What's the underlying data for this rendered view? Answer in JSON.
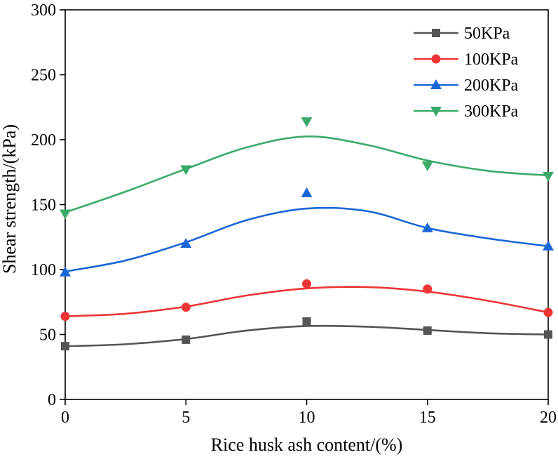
{
  "chart_data": {
    "type": "line",
    "title": "",
    "xlabel": "Rice husk ash content/(%)",
    "ylabel": "Shear strength/(kPa)",
    "xlim": [
      0,
      20
    ],
    "ylim": [
      0,
      300
    ],
    "xticks": [
      0,
      5,
      10,
      15,
      20
    ],
    "yticks": [
      0,
      50,
      100,
      150,
      200,
      250,
      300
    ],
    "x": [
      0,
      5,
      10,
      15,
      20
    ],
    "legend_position": "top-right",
    "grid": false,
    "series": [
      {
        "name": "50KPa",
        "color": "#555555",
        "marker": "square",
        "values": [
          41,
          46,
          60,
          53,
          50
        ],
        "fit": [
          [
            0,
            41
          ],
          [
            2.5,
            42.5
          ],
          [
            5,
            46.5
          ],
          [
            7.5,
            53
          ],
          [
            10,
            56.5
          ],
          [
            12.5,
            56
          ],
          [
            15,
            53.5
          ],
          [
            17.5,
            51
          ],
          [
            20,
            50
          ]
        ]
      },
      {
        "name": "100KPa",
        "color": "#ee3535",
        "marker": "circle",
        "values": [
          64,
          71,
          89,
          85,
          67
        ],
        "fit": [
          [
            0,
            64
          ],
          [
            2.5,
            66
          ],
          [
            5,
            71.5
          ],
          [
            7.5,
            80
          ],
          [
            10,
            85.5
          ],
          [
            12.5,
            86.5
          ],
          [
            15,
            83
          ],
          [
            17.5,
            76
          ],
          [
            20,
            67
          ]
        ]
      },
      {
        "name": "200KPa",
        "color": "#1a66d6",
        "marker": "triangle-up",
        "values": [
          98,
          120,
          159,
          132,
          118
        ],
        "fit": [
          [
            0,
            98.5
          ],
          [
            2.5,
            107
          ],
          [
            5,
            121
          ],
          [
            7.5,
            138
          ],
          [
            10,
            147
          ],
          [
            12.5,
            145
          ],
          [
            15,
            132
          ],
          [
            17.5,
            124
          ],
          [
            20,
            118
          ]
        ]
      },
      {
        "name": "300KPa",
        "color": "#3aaa6a",
        "marker": "triangle-down",
        "values": [
          143,
          177,
          214,
          180,
          172
        ],
        "fit": [
          [
            0,
            144
          ],
          [
            2.5,
            160
          ],
          [
            5,
            177.5
          ],
          [
            7.5,
            194
          ],
          [
            10,
            202.5
          ],
          [
            12.5,
            196
          ],
          [
            15,
            184
          ],
          [
            17.5,
            176
          ],
          [
            20,
            172.5
          ]
        ]
      }
    ]
  }
}
